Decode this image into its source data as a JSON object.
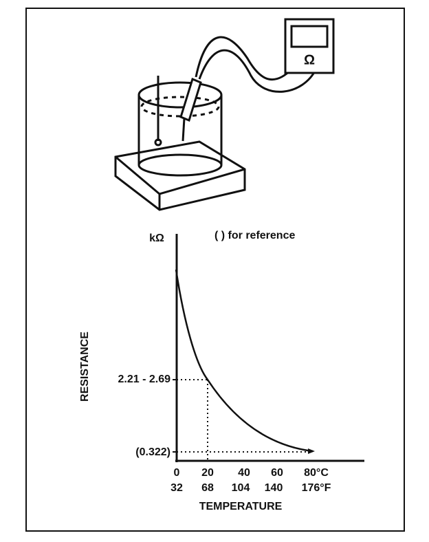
{
  "meter": {
    "symbol": "Ω"
  },
  "graph": {
    "y_unit": "kΩ",
    "note": "(   ) for reference",
    "y_axis_label": "RESISTANCE",
    "y_labels": [
      "2.21 - 2.69",
      "(0.322)"
    ],
    "x_labels_c": [
      "0",
      "20",
      "40",
      "60",
      "80°C"
    ],
    "x_labels_f": [
      "32",
      "68",
      "104",
      "140",
      "176°F"
    ],
    "x_axis_label": "TEMPERATURE"
  }
}
